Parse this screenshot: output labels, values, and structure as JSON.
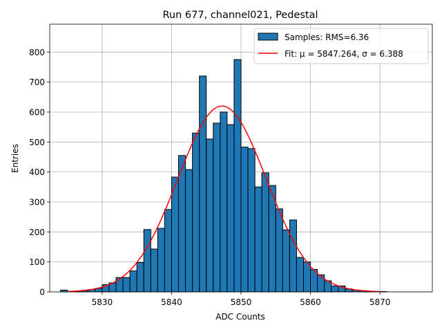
{
  "chart_data": {
    "type": "bar",
    "title": "Run 677, channel021, Pedestal",
    "xlabel": "ADC Counts",
    "ylabel": "Entries",
    "xlim": [
      5822.45,
      5877.55
    ],
    "ylim": [
      0,
      893
    ],
    "grid": true,
    "legend_position": "top-right",
    "x_ticks": [
      5830,
      5840,
      5850,
      5860,
      5870
    ],
    "y_ticks": [
      0,
      100,
      200,
      300,
      400,
      500,
      600,
      700,
      800
    ],
    "bin_width": 1,
    "bin_edges_start": 5824,
    "histogram": {
      "name": "Samples: RMS=6.36",
      "color": "#1f77b4",
      "edge_color": "#000000",
      "counts": [
        6,
        0,
        2,
        4,
        8,
        12,
        24,
        30,
        48,
        48,
        70,
        98,
        208,
        143,
        212,
        275,
        383,
        455,
        408,
        530,
        720,
        510,
        563,
        600,
        558,
        775,
        483,
        478,
        350,
        397,
        355,
        277,
        207,
        240,
        115,
        100,
        75,
        57,
        37,
        20,
        20,
        10,
        6,
        4,
        2,
        1,
        1,
        0,
        0,
        0,
        0
      ]
    },
    "fit": {
      "name": "Fit: μ = 5847.264, σ = 6.388",
      "color": "#ff0000",
      "mu": 5847.264,
      "sigma": 6.388,
      "amplitude": 620,
      "x_range": [
        5825,
        5870
      ]
    }
  }
}
